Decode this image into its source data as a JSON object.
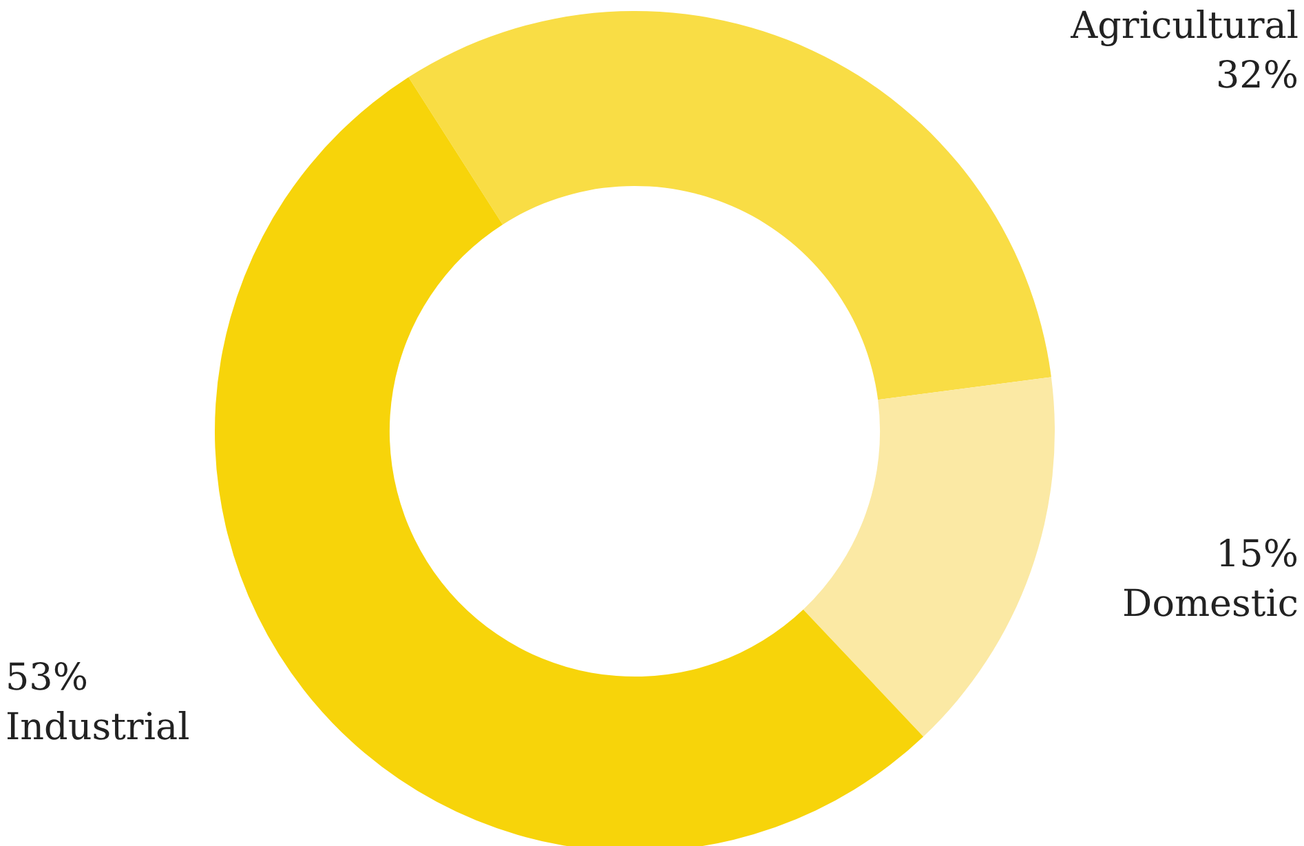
{
  "chart_data": {
    "type": "donut",
    "categories": [
      "Agricultural",
      "Domestic",
      "Industrial"
    ],
    "values": [
      32,
      15,
      53
    ],
    "colors": [
      "#f9dd45",
      "#fbe9a4",
      "#f7d40a"
    ],
    "value_labels": [
      "32%",
      "15%",
      "53%"
    ],
    "legend": false
  }
}
